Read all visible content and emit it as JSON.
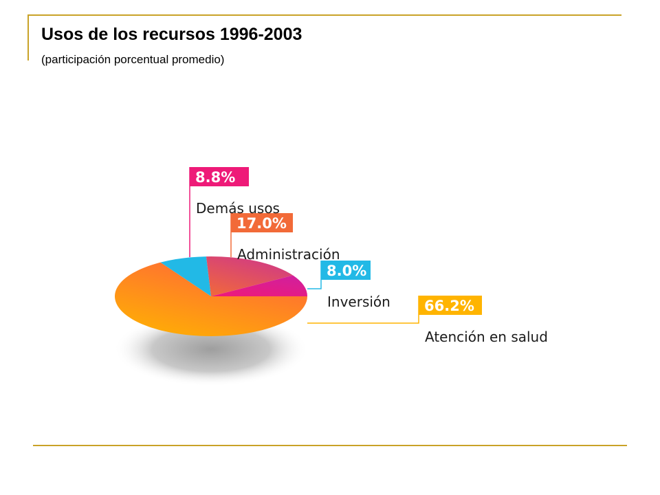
{
  "header": {
    "title": "Usos de los recursos 1996-2003",
    "subtitle": "(participación porcentual promedio)"
  },
  "chart_data": {
    "type": "pie",
    "title": "Usos de los recursos 1996-2003",
    "subtitle": "(participación porcentual promedio)",
    "slices": [
      {
        "label": "Atención en salud",
        "value": 66.2,
        "value_label": "66.2%",
        "color": "#ffb400",
        "color2": "#ff6b35"
      },
      {
        "label": "Inversión",
        "value": 8.0,
        "value_label": "8.0%",
        "color": "#22b9e6",
        "color2": "#22b9e6"
      },
      {
        "label": "Administración",
        "value": 17.0,
        "value_label": "17.0%",
        "color": "#f26a38",
        "color2": "#d23c82"
      },
      {
        "label": "Demás usos",
        "value": 8.8,
        "value_label": "8.8%",
        "color": "#ee1a78",
        "color2": "#d41f9a"
      }
    ],
    "legend": "callout-labels-right"
  },
  "colors": {
    "rule": "#c9a227",
    "shadow": "#bdbdbd"
  }
}
